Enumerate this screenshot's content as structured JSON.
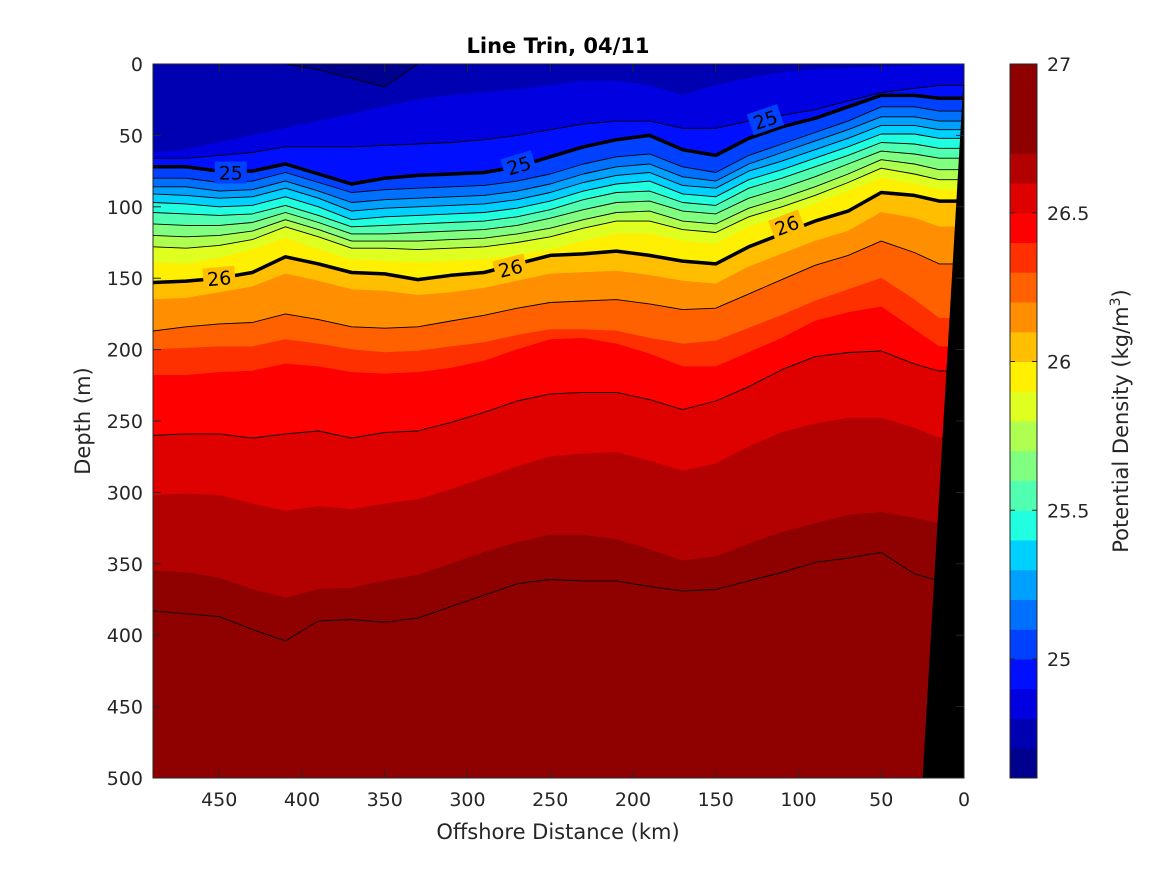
{
  "chart_data": {
    "type": "contourf",
    "title": "Line Trin, 04/11",
    "xlabel": "Offshore Distance (km)",
    "ylabel": "Depth (m)",
    "xlim": [
      490,
      0
    ],
    "ylim": [
      0,
      500
    ],
    "x_reversed": true,
    "y_reversed": true,
    "xticks": [
      450,
      400,
      350,
      300,
      250,
      200,
      150,
      100,
      50,
      0
    ],
    "yticks": [
      0,
      50,
      100,
      150,
      200,
      250,
      300,
      350,
      400,
      450,
      500
    ],
    "colorbar": {
      "label": "Potential Density (kg/m",
      "label_sup": "3",
      "label_tail": ")",
      "limits": [
        24.6,
        27.0
      ],
      "ticks": [
        25,
        25.5,
        26,
        26.5,
        27
      ],
      "tick_labels": [
        "25",
        "25.5",
        "26",
        "26.5",
        "27"
      ],
      "level_step": 0.1,
      "colormap": "jet",
      "colors": [
        "#00008f",
        "#0000b3",
        "#0000e0",
        "#0010ff",
        "#0040ff",
        "#0070ff",
        "#00a0ff",
        "#00d0ff",
        "#20ffdf",
        "#50ffaf",
        "#80ff80",
        "#afff50",
        "#dfff20",
        "#ffef00",
        "#ffbf00",
        "#ff8f00",
        "#ff6000",
        "#ff3000",
        "#ff0000",
        "#df0000",
        "#b30000",
        "#8f0000"
      ]
    },
    "x": [
      490,
      470,
      450,
      430,
      410,
      390,
      370,
      350,
      330,
      310,
      290,
      270,
      250,
      230,
      210,
      190,
      170,
      150,
      130,
      110,
      90,
      70,
      50,
      30,
      15
    ],
    "isopycnals": [
      {
        "level": 24.7,
        "depth": [
          0,
          0,
          0,
          0,
          0,
          4,
          10,
          16,
          0,
          0,
          0,
          0,
          0,
          0,
          0,
          0,
          0,
          0,
          0,
          0,
          0,
          0,
          0,
          0,
          0
        ]
      },
      {
        "level": 24.8,
        "depth": [
          62,
          60,
          55,
          50,
          45,
          40,
          35,
          30,
          25,
          22,
          20,
          18,
          15,
          12,
          12,
          15,
          22,
          15,
          10,
          6,
          4,
          3,
          2,
          1,
          0
        ]
      },
      {
        "level": 24.9,
        "depth": [
          66,
          66,
          64,
          62,
          58,
          58,
          58,
          57,
          56,
          55,
          53,
          50,
          46,
          42,
          40,
          40,
          45,
          45,
          40,
          36,
          32,
          26,
          20,
          17,
          15
        ]
      },
      {
        "level": 25.0,
        "depth": [
          72,
          72,
          75,
          75,
          70,
          77,
          84,
          80,
          78,
          77,
          76,
          72,
          65,
          58,
          53,
          50,
          60,
          64,
          52,
          44,
          38,
          30,
          22,
          22,
          24
        ]
      },
      {
        "level": 25.1,
        "depth": [
          80,
          80,
          83,
          82,
          76,
          83,
          90,
          88,
          87,
          86,
          85,
          82,
          77,
          70,
          65,
          63,
          72,
          76,
          64,
          56,
          48,
          40,
          30,
          30,
          33
        ]
      },
      {
        "level": 25.2,
        "depth": [
          86,
          86,
          89,
          88,
          82,
          89,
          97,
          95,
          94,
          93,
          92,
          89,
          84,
          77,
          72,
          70,
          79,
          82,
          70,
          62,
          54,
          46,
          37,
          37,
          40
        ]
      },
      {
        "level": 25.3,
        "depth": [
          91,
          92,
          94,
          93,
          87,
          94,
          103,
          101,
          100,
          99,
          98,
          95,
          90,
          83,
          78,
          76,
          85,
          87,
          75,
          68,
          60,
          52,
          43,
          43,
          46
        ]
      },
      {
        "level": 25.4,
        "depth": [
          97,
          98,
          100,
          99,
          93,
          100,
          109,
          107,
          106,
          105,
          104,
          101,
          96,
          89,
          84,
          82,
          91,
          93,
          81,
          74,
          66,
          58,
          49,
          49,
          52
        ]
      },
      {
        "level": 25.5,
        "depth": [
          104,
          105,
          106,
          105,
          99,
          106,
          114,
          113,
          112,
          111,
          110,
          107,
          102,
          95,
          90,
          89,
          97,
          99,
          87,
          80,
          72,
          64,
          55,
          56,
          59
        ]
      },
      {
        "level": 25.6,
        "depth": [
          112,
          113,
          113,
          111,
          104,
          111,
          119,
          119,
          118,
          117,
          116,
          113,
          108,
          102,
          97,
          96,
          103,
          105,
          94,
          87,
          79,
          70,
          61,
          63,
          66
        ]
      },
      {
        "level": 25.7,
        "depth": [
          120,
          121,
          120,
          117,
          109,
          116,
          124,
          124,
          124,
          123,
          122,
          119,
          115,
          109,
          104,
          103,
          110,
          112,
          101,
          94,
          86,
          77,
          67,
          70,
          74
        ]
      },
      {
        "level": 25.8,
        "depth": [
          128,
          129,
          127,
          123,
          114,
          121,
          129,
          129,
          130,
          129,
          128,
          125,
          121,
          115,
          110,
          110,
          116,
          118,
          107,
          100,
          92,
          83,
          73,
          77,
          81
        ]
      },
      {
        "level": 25.9,
        "depth": [
          139,
          140,
          136,
          130,
          122,
          130,
          137,
          138,
          139,
          138,
          137,
          134,
          130,
          124,
          119,
          119,
          124,
          126,
          114,
          107,
          98,
          89,
          80,
          84,
          88
        ]
      },
      {
        "level": 26.0,
        "depth": [
          153,
          152,
          150,
          146,
          135,
          140,
          146,
          147,
          151,
          148,
          146,
          140,
          134,
          133,
          131,
          134,
          138,
          140,
          128,
          119,
          110,
          103,
          90,
          92,
          96
        ]
      },
      {
        "level": 26.1,
        "depth": [
          165,
          164,
          160,
          156,
          147,
          152,
          158,
          159,
          162,
          160,
          157,
          152,
          147,
          146,
          145,
          148,
          152,
          154,
          142,
          133,
          124,
          117,
          104,
          108,
          114
        ]
      },
      {
        "level": 26.2,
        "depth": [
          187,
          184,
          182,
          181,
          175,
          179,
          184,
          185,
          184,
          180,
          176,
          171,
          167,
          166,
          165,
          168,
          172,
          171,
          161,
          151,
          141,
          134,
          124,
          132,
          140
        ]
      },
      {
        "level": 26.3,
        "depth": [
          200,
          199,
          198,
          198,
          193,
          196,
          200,
          202,
          201,
          198,
          195,
          190,
          186,
          186,
          187,
          192,
          196,
          194,
          185,
          176,
          166,
          158,
          150,
          165,
          178
        ]
      },
      {
        "level": 26.4,
        "depth": [
          218,
          218,
          216,
          215,
          210,
          212,
          216,
          217,
          216,
          213,
          208,
          200,
          193,
          192,
          196,
          203,
          212,
          212,
          202,
          192,
          180,
          174,
          170,
          186,
          198
        ]
      },
      {
        "level": 26.5,
        "depth": [
          260,
          259,
          259,
          262,
          259,
          257,
          262,
          258,
          257,
          251,
          244,
          236,
          231,
          230,
          230,
          235,
          242,
          236,
          226,
          214,
          205,
          202,
          201,
          210,
          215
        ]
      },
      {
        "level": 26.6,
        "depth": [
          302,
          301,
          302,
          308,
          313,
          310,
          312,
          308,
          305,
          298,
          290,
          282,
          275,
          273,
          272,
          278,
          285,
          280,
          268,
          258,
          252,
          248,
          248,
          255,
          262
        ]
      },
      {
        "level": 26.7,
        "depth": [
          355,
          356,
          360,
          368,
          374,
          368,
          367,
          362,
          358,
          350,
          342,
          335,
          330,
          330,
          333,
          340,
          348,
          345,
          336,
          328,
          322,
          316,
          314,
          318,
          322
        ]
      },
      {
        "level": 26.8,
        "depth": [
          383,
          385,
          387,
          396,
          404,
          390,
          389,
          391,
          388,
          380,
          372,
          364,
          361,
          362,
          362,
          366,
          369,
          368,
          362,
          356,
          349,
          346,
          342,
          357,
          362
        ]
      },
      {
        "level": 26.9,
        "depth": [
          415,
          417,
          419,
          428,
          435,
          424,
          420,
          420,
          418,
          414,
          408,
          402,
          398,
          399,
          401,
          404,
          408,
          405,
          399,
          392,
          386,
          381,
          378,
          392,
          400
        ]
      },
      {
        "level": 27.0,
        "depth": [
          498,
          496,
          494,
          497,
          500,
          500,
          500,
          500,
          497,
          490,
          483,
          478,
          476,
          476,
          477,
          478,
          481,
          477,
          470,
          466,
          466,
          465,
          458,
          470,
          478
        ]
      }
    ],
    "bold_levels": [
      25,
      26
    ],
    "drawn_levels": [
      24.7,
      24.9,
      25.0,
      25.1,
      25.2,
      25.3,
      25.4,
      25.5,
      25.6,
      25.7,
      25.8,
      26.0,
      26.2,
      26.5,
      26.8
    ],
    "inline_labels": [
      {
        "text": "25",
        "x": 443,
        "depth": 76
      },
      {
        "text": "25",
        "x": 269,
        "depth": 71
      },
      {
        "text": "25",
        "x": 120,
        "depth": 39
      },
      {
        "text": "26",
        "x": 450,
        "depth": 150
      },
      {
        "text": "26",
        "x": 274,
        "depth": 143
      },
      {
        "text": "26",
        "x": 107,
        "depth": 113
      }
    ],
    "topography": {
      "color": "#000000",
      "x": [
        25,
        0,
        0
      ],
      "depth": [
        500,
        5,
        500
      ]
    }
  }
}
